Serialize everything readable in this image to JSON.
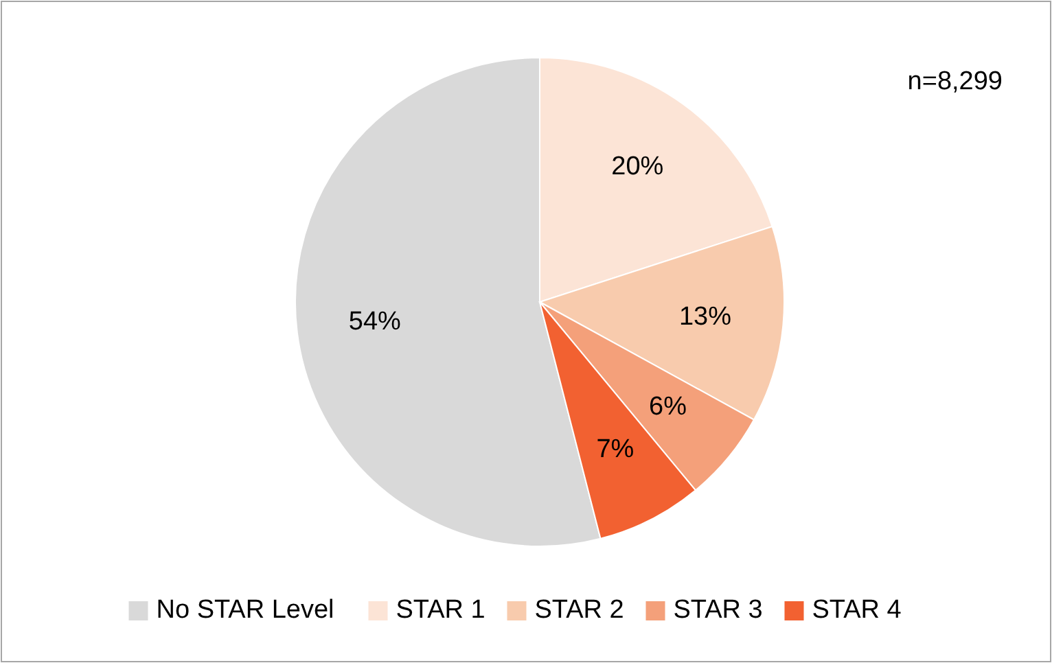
{
  "chart_data": {
    "type": "pie",
    "categories": [
      "No STAR Level",
      "STAR 1",
      "STAR 2",
      "STAR 3",
      "STAR 4"
    ],
    "values": [
      54,
      20,
      13,
      6,
      7
    ],
    "colors": [
      "#d9d9d9",
      "#fce4d6",
      "#f8cbad",
      "#f4a07a",
      "#f26131"
    ],
    "value_labels": [
      "54%",
      "20%",
      "13%",
      "6%",
      "7%"
    ],
    "annotations": [
      "n=8,299"
    ],
    "legend": "bottom"
  }
}
